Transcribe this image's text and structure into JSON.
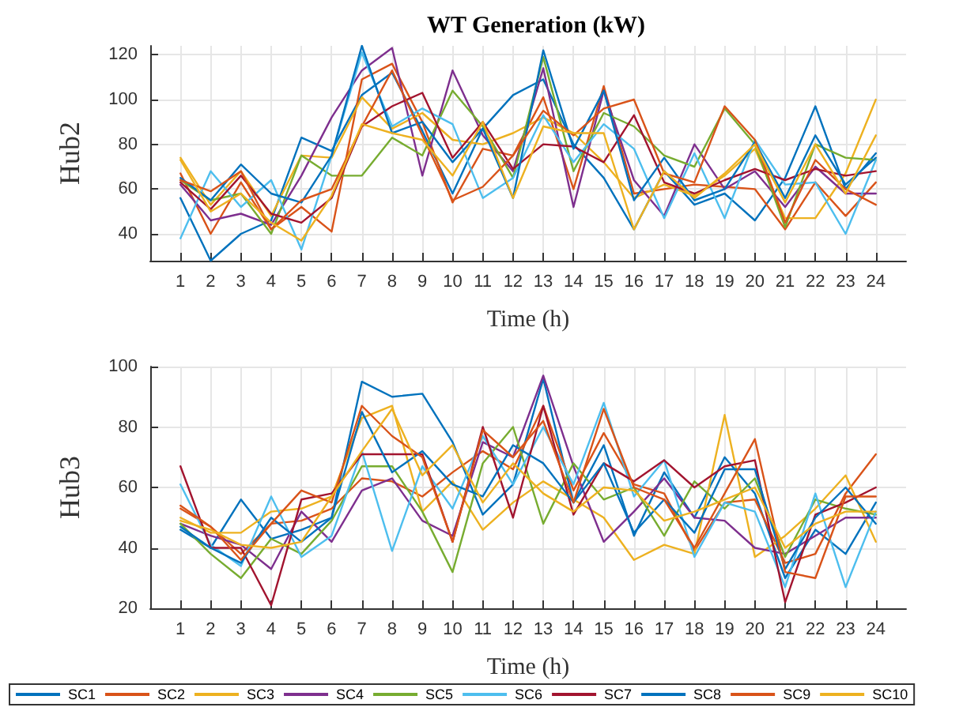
{
  "chart_data": [
    {
      "type": "line",
      "title": "WT Generation (kW)",
      "xlabel": "Time (h)",
      "ylabel": "Hub2",
      "x": [
        1,
        2,
        3,
        4,
        5,
        6,
        7,
        8,
        9,
        10,
        11,
        12,
        13,
        14,
        15,
        16,
        17,
        18,
        19,
        20,
        21,
        22,
        23,
        24
      ],
      "xlim": [
        0,
        25
      ],
      "xticks": [
        1,
        2,
        3,
        4,
        5,
        6,
        7,
        8,
        9,
        10,
        11,
        12,
        13,
        14,
        15,
        16,
        17,
        18,
        19,
        20,
        21,
        22,
        23,
        24
      ],
      "ylim": [
        28,
        124
      ],
      "yticks": [
        40,
        60,
        80,
        100,
        120
      ],
      "grid": true,
      "legend": false,
      "marker": "none",
      "line_style": "solid",
      "series": [
        {
          "color": "#0072bd",
          "values": [
            56,
            28,
            40,
            46,
            83,
            77,
            102,
            112,
            86,
            58,
            87,
            102,
            109,
            80,
            65,
            42,
            68,
            53,
            58,
            46,
            65,
            97,
            60,
            76
          ]
        },
        {
          "color": "#d95319",
          "values": [
            67,
            40,
            63,
            42,
            52,
            41,
            109,
            116,
            90,
            54,
            78,
            75,
            101,
            60,
            106,
            58,
            60,
            62,
            61,
            60,
            42,
            63,
            48,
            63
          ]
        },
        {
          "color": "#edb120",
          "values": [
            74,
            53,
            68,
            48,
            75,
            74,
            101,
            87,
            94,
            82,
            80,
            85,
            92,
            85,
            72,
            56,
            62,
            57,
            66,
            78,
            47,
            47,
            67,
            100
          ]
        },
        {
          "color": "#7e2f8e",
          "values": [
            62,
            46,
            49,
            44,
            66,
            92,
            113,
            123,
            66,
            113,
            84,
            68,
            114,
            52,
            104,
            64,
            48,
            80,
            60,
            68,
            52,
            70,
            58,
            58
          ]
        },
        {
          "color": "#77ac30",
          "values": [
            64,
            55,
            58,
            40,
            75,
            66,
            66,
            83,
            75,
            104,
            88,
            65,
            119,
            68,
            94,
            88,
            75,
            70,
            96,
            80,
            43,
            80,
            74,
            73
          ]
        },
        {
          "color": "#4dbeee",
          "values": [
            38,
            68,
            52,
            64,
            33,
            75,
            121,
            88,
            96,
            89,
            56,
            65,
            93,
            72,
            89,
            78,
            47,
            76,
            47,
            82,
            62,
            63,
            40,
            73
          ]
        },
        {
          "color": "#a2142f",
          "values": [
            63,
            51,
            66,
            49,
            45,
            56,
            88,
            97,
            103,
            74,
            90,
            69,
            80,
            79,
            72,
            93,
            63,
            58,
            64,
            69,
            64,
            69,
            66,
            68
          ]
        },
        {
          "color": "#0072bd",
          "values": [
            65,
            55,
            71,
            58,
            54,
            75,
            124,
            85,
            90,
            72,
            87,
            56,
            122,
            78,
            104,
            55,
            74,
            55,
            60,
            81,
            56,
            84,
            62,
            74
          ]
        },
        {
          "color": "#d95319",
          "values": [
            64,
            59,
            68,
            42,
            55,
            60,
            88,
            113,
            84,
            55,
            61,
            75,
            95,
            84,
            96,
            100,
            67,
            63,
            97,
            82,
            45,
            73,
            60,
            53
          ]
        },
        {
          "color": "#edb120",
          "values": [
            73,
            50,
            58,
            45,
            37,
            57,
            89,
            85,
            82,
            66,
            90,
            56,
            88,
            85,
            85,
            42,
            68,
            56,
            67,
            80,
            54,
            80,
            58,
            84
          ]
        }
      ]
    },
    {
      "type": "line",
      "xlabel": "Time (h)",
      "ylabel": "Hub3",
      "x": [
        1,
        2,
        3,
        4,
        5,
        6,
        7,
        8,
        9,
        10,
        11,
        12,
        13,
        14,
        15,
        16,
        17,
        18,
        19,
        20,
        21,
        22,
        23,
        24
      ],
      "xlim": [
        0,
        25
      ],
      "xticks": [
        1,
        2,
        3,
        4,
        5,
        6,
        7,
        8,
        9,
        10,
        11,
        12,
        13,
        14,
        15,
        16,
        17,
        18,
        19,
        20,
        21,
        22,
        23,
        24
      ],
      "ylim": [
        20,
        100
      ],
      "yticks": [
        20,
        40,
        60,
        80,
        100
      ],
      "grid": true,
      "legend": "bottom",
      "marker": "none",
      "line_style": "solid",
      "series": [
        {
          "name": "SC1",
          "color": "#0072bd",
          "values": [
            46,
            40,
            56,
            43,
            46,
            50,
            95,
            90,
            91,
            75,
            51,
            61,
            96,
            55,
            74,
            44,
            65,
            50,
            70,
            58,
            30,
            46,
            38,
            55
          ]
        },
        {
          "name": "SC2",
          "color": "#d95319",
          "values": [
            53,
            47,
            38,
            48,
            49,
            53,
            63,
            62,
            57,
            65,
            72,
            66,
            87,
            59,
            78,
            61,
            58,
            39,
            55,
            56,
            35,
            38,
            58,
            71
          ]
        },
        {
          "name": "SC3",
          "color": "#edb120",
          "values": [
            50,
            45,
            45,
            52,
            53,
            57,
            83,
            87,
            52,
            62,
            46,
            55,
            62,
            56,
            50,
            36,
            41,
            38,
            84,
            37,
            44,
            53,
            64,
            42
          ]
        },
        {
          "name": "SC4",
          "color": "#7e2f8e",
          "values": [
            48,
            44,
            41,
            33,
            52,
            42,
            59,
            63,
            49,
            44,
            75,
            70,
            97,
            67,
            42,
            52,
            63,
            50,
            49,
            40,
            38,
            44,
            50,
            50
          ]
        },
        {
          "name": "SC5",
          "color": "#77ac30",
          "values": [
            48,
            38,
            30,
            43,
            38,
            49,
            67,
            67,
            52,
            32,
            68,
            80,
            48,
            68,
            56,
            60,
            44,
            62,
            53,
            63,
            37,
            56,
            53,
            51
          ]
        },
        {
          "name": "SC6",
          "color": "#4dbeee",
          "values": [
            61,
            41,
            34,
            57,
            37,
            44,
            72,
            39,
            67,
            53,
            77,
            61,
            80,
            61,
            88,
            57,
            69,
            37,
            55,
            52,
            27,
            58,
            27,
            52
          ]
        },
        {
          "name": "SC7",
          "color": "#a2142f",
          "values": [
            67,
            40,
            40,
            21,
            56,
            58,
            71,
            71,
            71,
            42,
            80,
            50,
            87,
            51,
            68,
            62,
            69,
            60,
            67,
            69,
            22,
            51,
            55,
            60
          ]
        },
        {
          "name": "SC8",
          "color": "#0072bd",
          "values": [
            47,
            40,
            35,
            50,
            42,
            50,
            85,
            65,
            72,
            61,
            57,
            74,
            68,
            55,
            68,
            45,
            56,
            45,
            66,
            66,
            33,
            50,
            60,
            48
          ]
        },
        {
          "name": "SC9",
          "color": "#d95319",
          "values": [
            54,
            47,
            36,
            48,
            59,
            55,
            87,
            77,
            70,
            42,
            79,
            70,
            82,
            55,
            86,
            60,
            56,
            40,
            58,
            76,
            32,
            30,
            57,
            57
          ]
        },
        {
          "name": "SC10",
          "color": "#edb120",
          "values": [
            49,
            46,
            41,
            40,
            42,
            57,
            72,
            86,
            64,
            74,
            55,
            68,
            58,
            52,
            60,
            59,
            49,
            52,
            56,
            60,
            40,
            48,
            52,
            52
          ]
        }
      ]
    }
  ]
}
